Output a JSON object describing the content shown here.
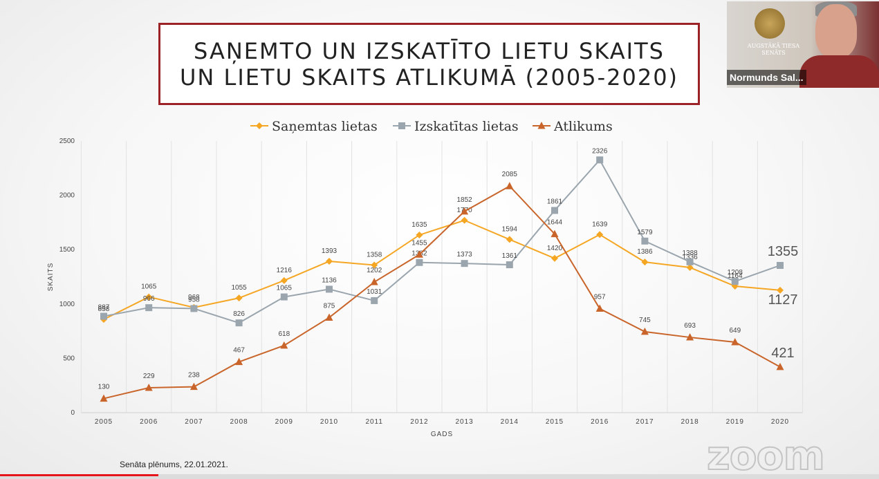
{
  "slide": {
    "title_line1": "SAŅEMTO UN IZSKATĪTO LIETU SKAITS",
    "title_line2": "UN LIETU SKAITS ATLIKUMĀ (2005-2020)",
    "footer": "Senāta plēnums, 22.01.2021."
  },
  "video": {
    "participant_name": "Normunds Sal...",
    "emblem_text": "AUGSTĀKĀ TIESA SENĀTS"
  },
  "zoom_watermark": "zoom",
  "playback": {
    "progress": 0.18
  },
  "chart_data": {
    "type": "line",
    "x": [
      2005,
      2006,
      2007,
      2008,
      2009,
      2010,
      2011,
      2012,
      2013,
      2014,
      2015,
      2016,
      2017,
      2018,
      2019,
      2020
    ],
    "xlabel": "GADS",
    "ylabel": "SKAITS",
    "ylim": [
      0,
      2500
    ],
    "yticks": [
      0,
      500,
      1000,
      1500,
      2000,
      2500
    ],
    "grid": "vertical",
    "legend_position": "top",
    "series": [
      {
        "name": "Saņemtas lietas",
        "color": "#f5a623",
        "marker": "diamond",
        "values": [
          858,
          1065,
          968,
          1055,
          1216,
          1393,
          1358,
          1635,
          1770,
          1594,
          1420,
          1639,
          1386,
          1336,
          1164,
          1127
        ]
      },
      {
        "name": "Izskatītas lietas",
        "color": "#9aa5ad",
        "marker": "square",
        "values": [
          887,
          966,
          958,
          826,
          1065,
          1136,
          1031,
          1382,
          1373,
          1361,
          1861,
          2326,
          1579,
          1388,
          1208,
          1355
        ]
      },
      {
        "name": "Atlikums",
        "color": "#c9652a",
        "marker": "triangle",
        "values": [
          130,
          229,
          238,
          467,
          618,
          875,
          1202,
          1455,
          1852,
          2085,
          1644,
          957,
          745,
          693,
          649,
          421
        ]
      }
    ]
  }
}
